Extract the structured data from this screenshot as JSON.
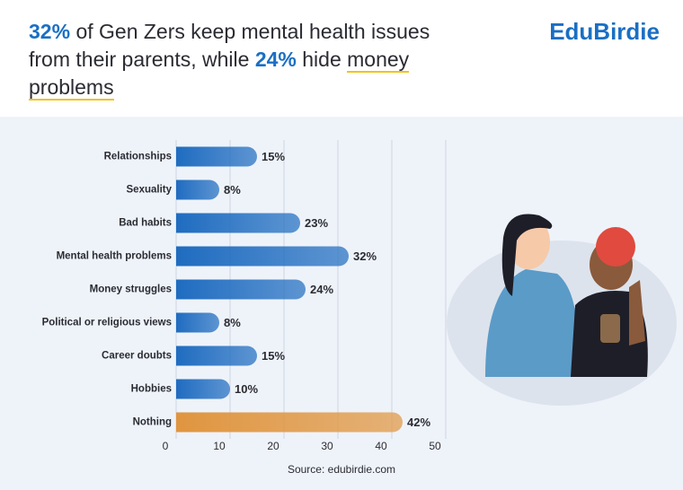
{
  "chart_data": {
    "type": "bar",
    "orientation": "horizontal",
    "title": [
      {
        "text": "32%",
        "style": "accent"
      },
      {
        "text": "of Gen Zers keep mental health issues from their parents, while",
        "style": "plain"
      },
      {
        "text": "24%",
        "style": "accent"
      },
      {
        "text": "hide",
        "style": "plain"
      },
      {
        "text": "money problems",
        "style": "underline"
      }
    ],
    "brand": "EduBirdie",
    "source": "Source: edubirdie.com",
    "categories": [
      "Relationships",
      "Sexuality",
      "Bad habits",
      "Mental health problems",
      "Money struggles",
      "Political or religious views",
      "Career doubts",
      "Hobbies",
      "Nothing"
    ],
    "values": [
      15,
      8,
      23,
      32,
      24,
      8,
      15,
      10,
      42
    ],
    "value_labels": [
      "15%",
      "8%",
      "23%",
      "32%",
      "24%",
      "8%",
      "15%",
      "10%",
      "42%"
    ],
    "colors": [
      "#1f6cc0",
      "#1f6cc0",
      "#1f6cc0",
      "#1f6cc0",
      "#1f6cc0",
      "#1f6cc0",
      "#1f6cc0",
      "#1f6cc0",
      "#e0953f"
    ],
    "xlim": [
      0,
      50
    ],
    "xticks": [
      0,
      10,
      20,
      30,
      40,
      50
    ],
    "grid": true
  }
}
